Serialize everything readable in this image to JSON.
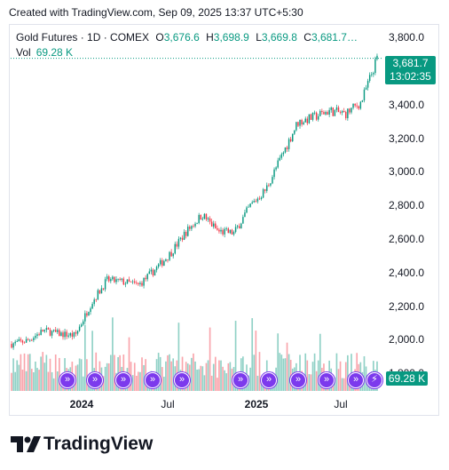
{
  "header": {
    "text": "Created with TradingView.com, Sep 09, 2025 13:37 UTC+5:30"
  },
  "legend": {
    "symbol": "Gold Futures · 1D · COMEX",
    "open_label": "O",
    "open": "3,676.6",
    "high_label": "H",
    "high": "3,698.9",
    "low_label": "L",
    "low": "3,669.8",
    "close_label": "C",
    "close": "3,681.7…",
    "vol_label": "Vol",
    "vol": "69.28 K"
  },
  "price_tag": {
    "price": "3,681.7",
    "countdown": "13:02:35"
  },
  "volume_tag": "69.28 K",
  "brand": {
    "name": "TradingView"
  },
  "colors": {
    "up": "#089981",
    "down": "#f23645",
    "event": "#7c3aed"
  },
  "event_icons": [
    "dividend-icon",
    "dividend-icon",
    "dividend-icon",
    "dividend-icon",
    "dividend-icon",
    "dividend-icon",
    "dividend-icon",
    "dividend-icon",
    "dividend-icon",
    "dividend-icon",
    "dividend-icon",
    "lightning-icon"
  ],
  "chart_data": {
    "type": "candlestick",
    "series": [
      {
        "name": "Gold Futures",
        "values_note": "daily closes, approximate"
      }
    ],
    "x": [
      "2023-10",
      "2023-11",
      "2023-12",
      "2024-01",
      "2024-02",
      "2024-03",
      "2024-04",
      "2024-05",
      "2024-06",
      "2024-07",
      "2024-08",
      "2024-09",
      "2024-10",
      "2024-11",
      "2024-12",
      "2025-01",
      "2025-02",
      "2025-03",
      "2025-04",
      "2025-05",
      "2025-06",
      "2025-07",
      "2025-08",
      "2025-09"
    ],
    "close": [
      1980,
      2000,
      2060,
      2040,
      2030,
      2220,
      2360,
      2350,
      2330,
      2420,
      2520,
      2650,
      2750,
      2650,
      2640,
      2800,
      2900,
      3100,
      3300,
      3330,
      3370,
      3350,
      3420,
      3680
    ],
    "volume_scale": "K",
    "x_tick_labels": [
      "2024",
      "Jul",
      "2025",
      "Jul"
    ],
    "y_tick_labels": [
      "1,800.0",
      "2,000.0",
      "2,200.0",
      "2,400.0",
      "2,600.0",
      "2,800.0",
      "3,000.0",
      "3,200.0",
      "3,400.0",
      "3,600.0",
      "3,800.0"
    ],
    "ylim": [
      1700,
      3870
    ],
    "last_price": 3681.7,
    "last_volume": "69.28 K"
  }
}
